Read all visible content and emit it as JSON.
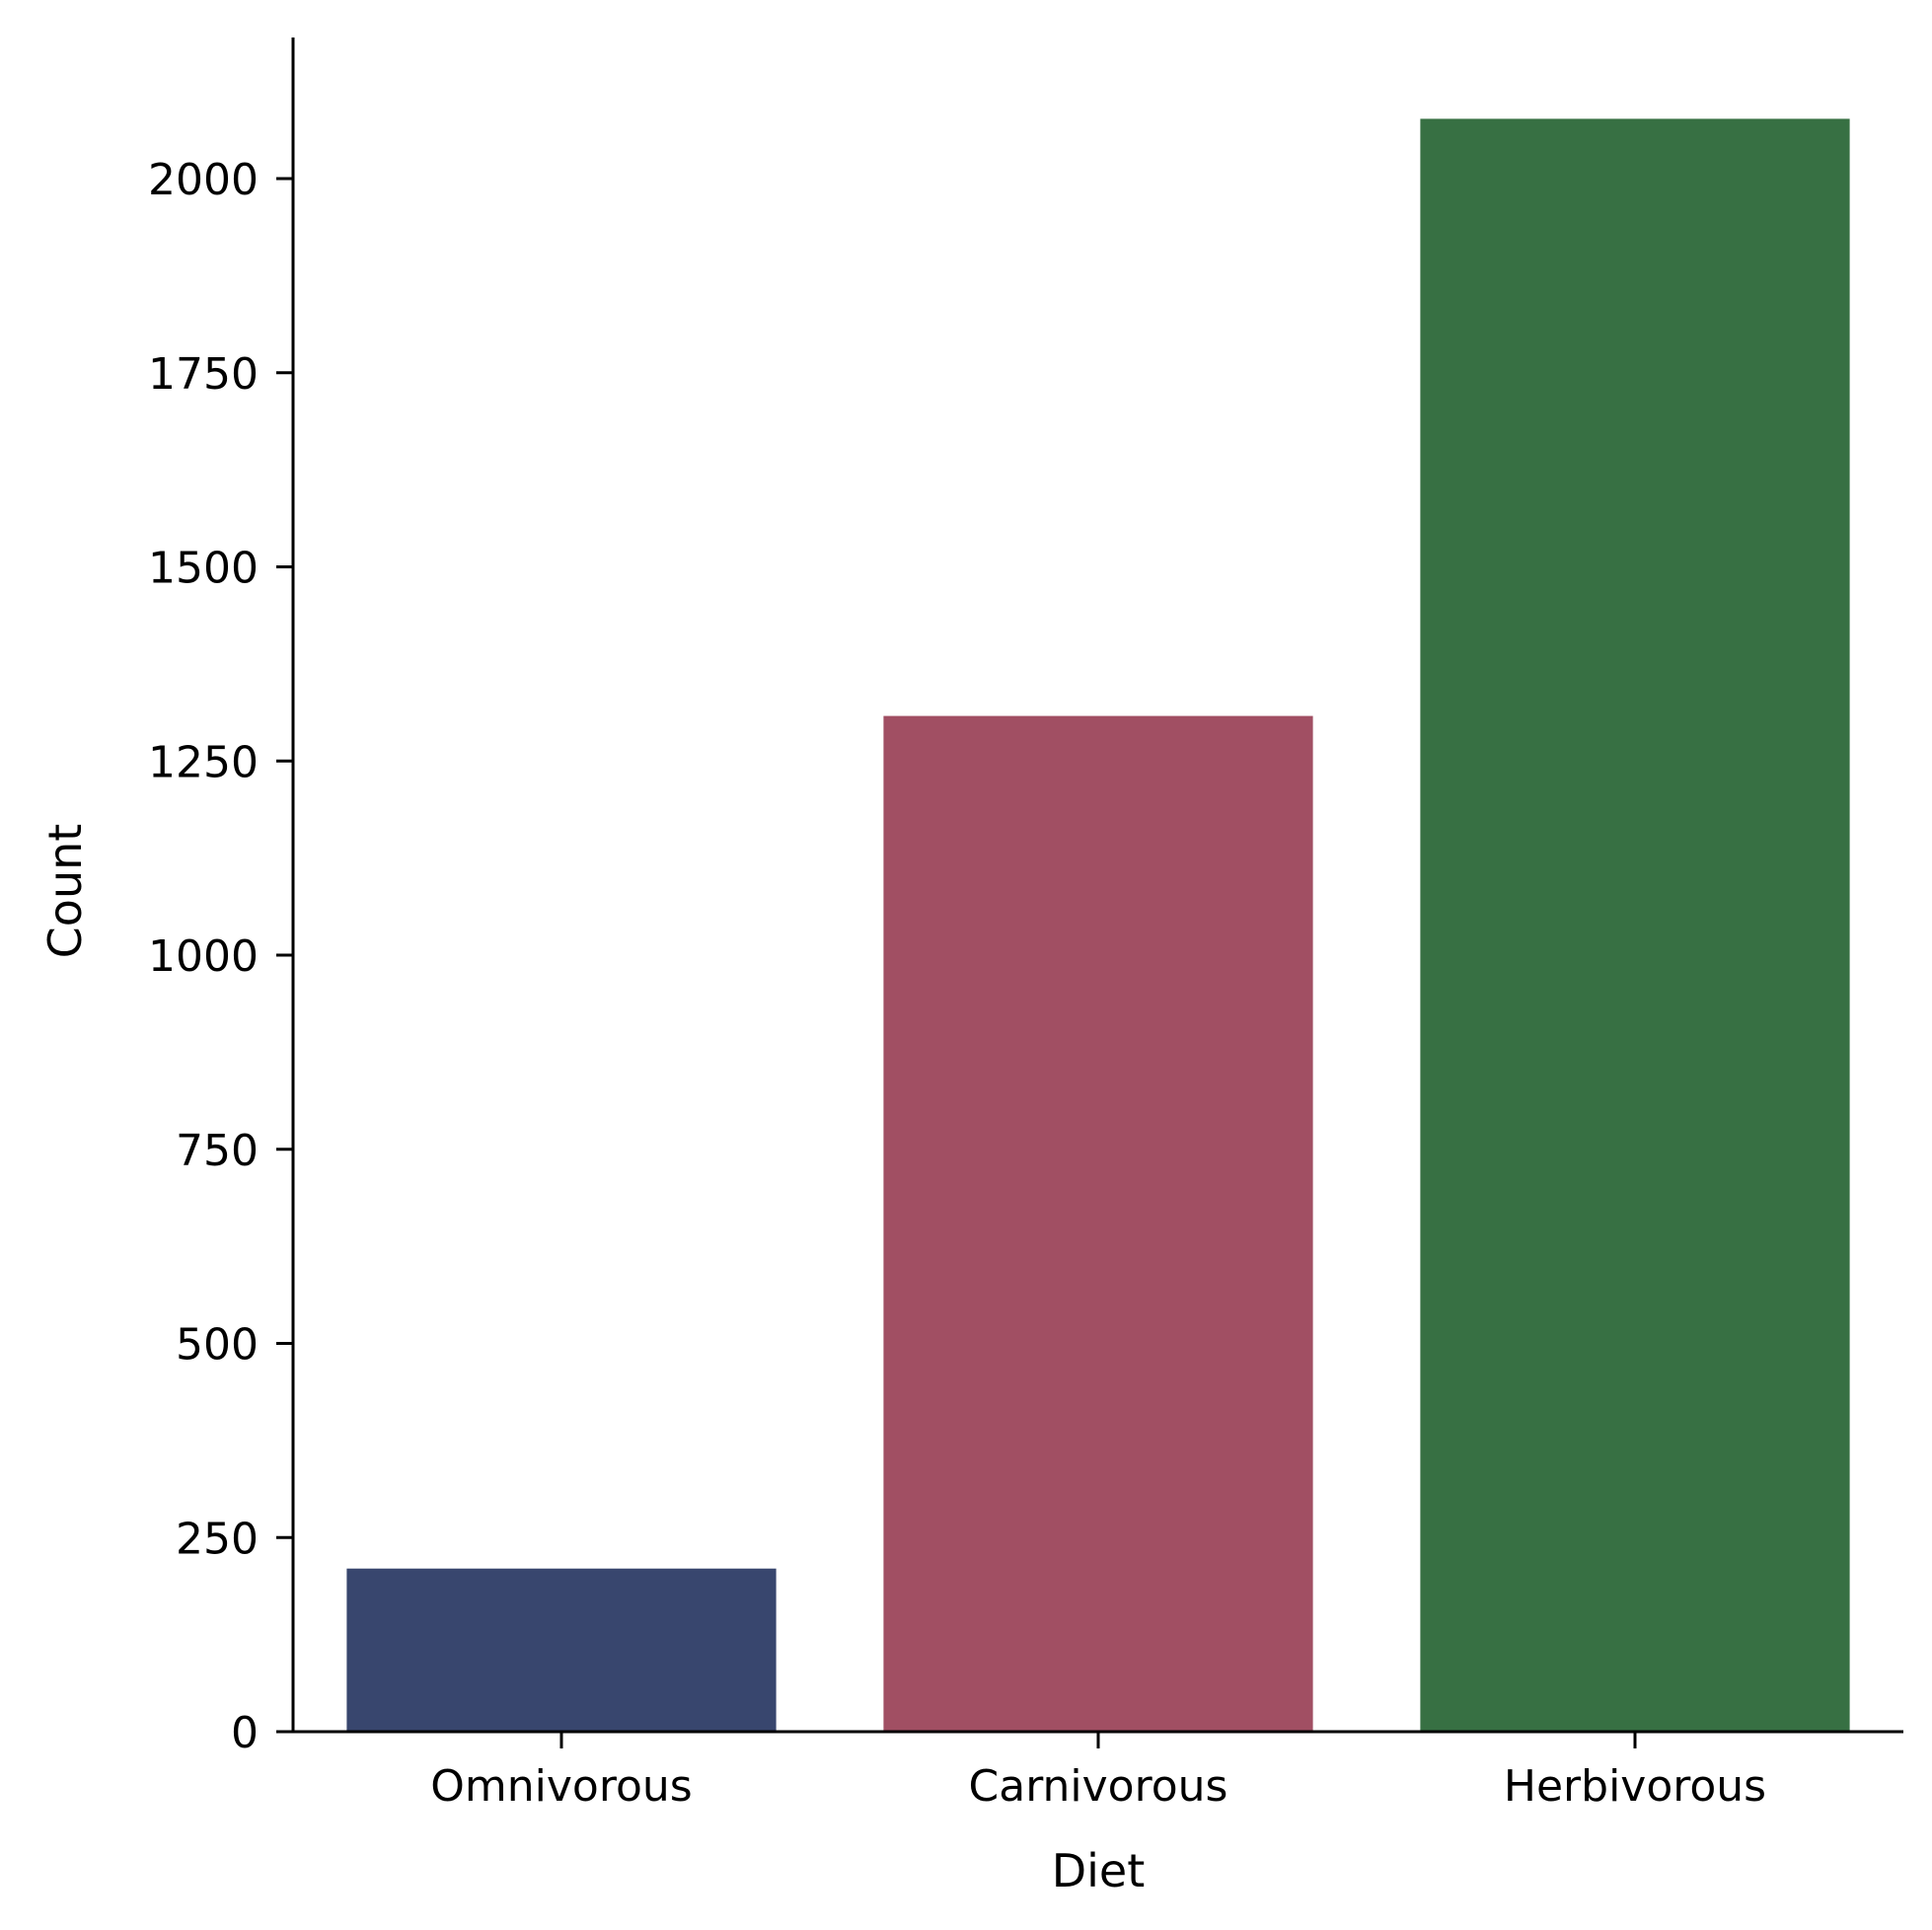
{
  "chart_data": {
    "type": "bar",
    "title": "",
    "xlabel": "Diet",
    "ylabel": "Count",
    "categories": [
      "Omnivorous",
      "Carnivorous",
      "Herbivorous"
    ],
    "values": [
      210,
      1308,
      2077
    ],
    "colors": [
      "#38466e",
      "#a14f63",
      "#377043"
    ],
    "ylim": [
      0,
      2180
    ],
    "yticks": [
      0,
      250,
      500,
      750,
      1000,
      1250,
      1500,
      1750,
      2000
    ],
    "ytick_labels": [
      "0",
      "250",
      "500",
      "750",
      "1000",
      "1250",
      "1500",
      "1750",
      "2000"
    ],
    "grid": false,
    "legend": "none"
  }
}
